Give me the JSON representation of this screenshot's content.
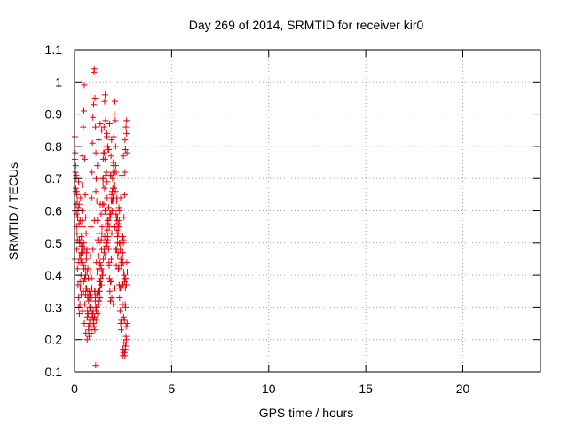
{
  "chart_data": {
    "type": "scatter",
    "title": "Day 269 of 2014, SRMTID for receiver kir0",
    "xlabel": "GPS time / hours",
    "ylabel": "SRMTID / TECUs",
    "xlim": [
      0,
      24
    ],
    "ylim": [
      0.1,
      1.1
    ],
    "xticks": [
      0,
      5,
      10,
      15,
      20
    ],
    "xtick_labels": [
      "0",
      "5",
      "10",
      "15",
      "20"
    ],
    "yticks": [
      0.1,
      0.2,
      0.3,
      0.4,
      0.5,
      0.6,
      0.7,
      0.8,
      0.9,
      1.0,
      1.1
    ],
    "ytick_labels": [
      "0.1",
      "0.2",
      "0.3",
      "0.4",
      "0.5",
      "0.6",
      "0.7",
      "0.8",
      "0.9",
      "1",
      "1.1"
    ],
    "grid": true,
    "marker": "+",
    "color": "#e8000b",
    "series": [
      {
        "name": "kir0",
        "x": [
          0.02,
          0.05,
          0.08,
          0.1,
          0.12,
          0.15,
          0.18,
          0.2,
          0.22,
          0.25,
          0.28,
          0.3,
          0.32,
          0.35,
          0.38,
          0.4,
          0.42,
          0.45,
          0.48,
          0.5,
          0.52,
          0.55,
          0.58,
          0.6,
          0.62,
          0.65,
          0.68,
          0.7,
          0.72,
          0.75,
          0.78,
          0.8,
          0.82,
          0.85,
          0.88,
          0.9,
          0.92,
          0.95,
          0.98,
          1.0,
          1.02,
          1.05,
          1.08,
          1.1,
          1.12,
          1.15,
          1.18,
          1.2,
          1.22,
          1.25,
          1.28,
          1.3,
          1.32,
          1.35,
          1.38,
          1.4,
          1.42,
          1.45,
          1.48,
          1.5,
          1.52,
          1.55,
          1.58,
          1.6,
          1.62,
          1.65,
          1.68,
          1.7,
          1.72,
          1.75,
          1.78,
          1.8,
          1.82,
          1.85,
          1.88,
          1.9,
          1.92,
          1.95,
          1.98,
          2.0,
          2.02,
          2.05,
          2.08,
          2.1,
          2.12,
          2.15,
          2.18,
          2.2,
          2.22,
          2.25,
          2.28,
          2.3,
          2.32,
          2.35,
          2.38,
          2.4,
          2.42,
          2.45,
          2.48,
          2.5,
          2.52,
          2.55,
          2.58,
          2.6,
          2.62,
          2.65,
          2.68,
          2.7,
          0.05,
          0.1,
          0.15,
          0.22,
          0.28,
          0.35,
          0.42,
          0.5,
          0.58,
          0.65,
          0.72,
          0.8,
          0.88,
          0.95,
          1.02,
          1.1,
          1.18,
          1.25,
          1.32,
          1.4,
          1.48,
          1.55,
          1.62,
          1.7,
          1.78,
          1.85,
          1.92,
          2.0,
          2.08,
          2.15,
          2.22,
          2.3,
          2.38,
          2.45,
          2.52,
          2.6,
          2.68,
          0.03,
          0.13,
          0.26,
          0.33,
          0.46,
          0.53,
          0.66,
          0.73,
          0.86,
          0.93,
          1.06,
          1.13,
          1.26,
          1.33,
          1.46,
          1.53,
          1.66,
          1.73,
          1.86,
          1.93,
          2.06,
          2.13,
          2.26,
          2.33,
          2.46,
          2.53,
          2.66,
          0.08,
          0.18,
          0.38,
          0.48,
          0.68,
          0.78,
          0.98,
          1.08,
          1.28,
          1.38,
          1.58,
          1.68,
          1.88,
          1.98,
          2.18,
          2.28,
          2.48,
          2.58,
          0.12,
          0.32,
          0.52,
          0.72,
          0.92,
          1.12,
          1.32,
          1.52,
          1.72,
          1.92,
          2.12,
          2.32,
          2.52,
          2.72,
          0.02,
          0.25,
          0.45,
          0.62,
          0.85,
          1.05,
          1.22,
          1.42,
          1.65,
          1.82,
          2.02,
          2.25,
          2.42,
          2.62,
          0.07,
          0.17,
          0.27,
          0.37,
          0.47,
          0.57,
          0.67,
          0.77,
          0.87,
          0.97,
          1.07,
          1.17,
          1.27,
          1.37,
          1.47,
          1.57,
          1.67,
          1.77,
          1.87,
          1.97,
          2.07,
          2.17,
          2.27,
          2.37,
          2.47,
          2.57,
          2.67,
          0.14,
          0.34,
          0.54,
          0.74,
          0.94,
          1.14,
          1.34,
          1.54,
          1.74,
          1.94,
          2.14,
          2.34,
          2.54,
          0.04,
          0.24,
          0.44,
          0.64,
          0.84,
          1.04,
          1.24,
          1.44,
          1.64,
          1.84,
          2.04,
          2.24,
          2.44,
          2.64,
          0.09,
          0.29,
          0.49,
          0.69,
          0.89,
          1.09,
          1.29,
          1.49,
          1.69,
          1.89,
          2.09,
          2.29,
          2.49,
          2.69,
          0.16,
          0.36,
          0.56,
          0.76,
          0.96,
          1.16,
          1.36,
          1.56,
          1.76,
          1.96,
          2.16,
          2.36,
          2.56,
          0.06,
          0.21,
          0.31,
          0.41,
          0.61,
          0.71,
          0.81,
          0.91,
          1.01,
          1.11,
          1.21,
          1.31,
          1.41,
          1.51,
          1.61,
          1.71,
          1.81,
          1.91,
          2.01,
          2.11,
          2.21,
          2.31,
          2.41,
          2.51,
          2.61,
          2.71,
          0.11,
          0.43,
          0.59,
          0.79,
          0.99,
          1.19,
          1.39,
          1.59,
          1.79,
          1.99,
          2.19,
          2.39,
          2.59,
          0.19,
          0.39,
          0.57,
          0.87,
          1.03,
          1.23,
          1.43,
          1.63,
          1.83,
          2.03,
          2.23,
          2.43,
          2.63,
          0.01,
          0.23,
          0.51,
          0.83,
          1.09,
          1.27,
          1.47,
          1.67,
          1.87,
          2.07,
          2.27,
          2.47,
          2.67,
          2.55,
          2.58,
          2.6,
          2.62,
          2.63,
          2.65,
          2.66,
          2.48,
          2.5,
          2.52
        ],
        "y": [
          0.83,
          0.72,
          0.62,
          0.55,
          0.48,
          0.42,
          0.37,
          0.33,
          0.3,
          0.28,
          0.31,
          0.36,
          0.45,
          0.52,
          0.6,
          0.68,
          0.77,
          0.86,
          0.91,
          0.99,
          0.76,
          0.65,
          0.58,
          0.53,
          0.47,
          0.41,
          0.33,
          0.28,
          0.24,
          0.21,
          0.25,
          0.34,
          0.46,
          0.55,
          0.64,
          0.72,
          0.81,
          0.89,
          0.93,
          1.03,
          1.04,
          0.95,
          0.86,
          0.78,
          0.7,
          0.63,
          0.57,
          0.51,
          0.46,
          0.42,
          0.38,
          0.35,
          0.33,
          0.37,
          0.42,
          0.48,
          0.55,
          0.62,
          0.7,
          0.78,
          0.86,
          0.94,
          0.96,
          0.88,
          0.8,
          0.72,
          0.64,
          0.57,
          0.52,
          0.48,
          0.43,
          0.39,
          0.35,
          0.32,
          0.38,
          0.45,
          0.53,
          0.6,
          0.67,
          0.75,
          0.83,
          0.9,
          0.94,
          0.88,
          0.8,
          0.72,
          0.64,
          0.58,
          0.52,
          0.47,
          0.42,
          0.37,
          0.33,
          0.29,
          0.25,
          0.23,
          0.26,
          0.31,
          0.37,
          0.44,
          0.51,
          0.58,
          0.65,
          0.72,
          0.79,
          0.86,
          0.88,
          0.78,
          0.66,
          0.59,
          0.51,
          0.44,
          0.38,
          0.34,
          0.29,
          0.25,
          0.22,
          0.2,
          0.23,
          0.3,
          0.39,
          0.48,
          0.57,
          0.66,
          0.74,
          0.82,
          0.87,
          0.85,
          0.76,
          0.67,
          0.59,
          0.51,
          0.44,
          0.38,
          0.33,
          0.31,
          0.36,
          0.43,
          0.5,
          0.57,
          0.64,
          0.71,
          0.77,
          0.82,
          0.84,
          0.6,
          0.53,
          0.46,
          0.4,
          0.35,
          0.31,
          0.27,
          0.24,
          0.22,
          0.27,
          0.35,
          0.44,
          0.53,
          0.62,
          0.7,
          0.78,
          0.84,
          0.79,
          0.71,
          0.63,
          0.55,
          0.48,
          0.42,
          0.36,
          0.31,
          0.27,
          0.24,
          0.7,
          0.6,
          0.49,
          0.42,
          0.35,
          0.3,
          0.26,
          0.33,
          0.42,
          0.51,
          0.6,
          0.69,
          0.77,
          0.72,
          0.63,
          0.55,
          0.47,
          0.39,
          0.65,
          0.46,
          0.39,
          0.32,
          0.27,
          0.29,
          0.38,
          0.47,
          0.56,
          0.65,
          0.74,
          0.6,
          0.5,
          0.41,
          0.76,
          0.51,
          0.43,
          0.36,
          0.29,
          0.23,
          0.31,
          0.4,
          0.49,
          0.58,
          0.67,
          0.53,
          0.44,
          0.36,
          0.67,
          0.58,
          0.5,
          0.44,
          0.38,
          0.34,
          0.29,
          0.26,
          0.23,
          0.25,
          0.32,
          0.41,
          0.5,
          0.59,
          0.68,
          0.76,
          0.83,
          0.79,
          0.71,
          0.63,
          0.55,
          0.48,
          0.42,
          0.36,
          0.31,
          0.26,
          0.2,
          0.63,
          0.47,
          0.39,
          0.33,
          0.28,
          0.3,
          0.39,
          0.48,
          0.57,
          0.66,
          0.59,
          0.5,
          0.41,
          0.78,
          0.62,
          0.55,
          0.48,
          0.41,
          0.35,
          0.31,
          0.4,
          0.49,
          0.58,
          0.67,
          0.56,
          0.47,
          0.39,
          0.71,
          0.57,
          0.5,
          0.42,
          0.36,
          0.3,
          0.36,
          0.45,
          0.54,
          0.63,
          0.72,
          0.61,
          0.52,
          0.44,
          0.58,
          0.49,
          0.42,
          0.35,
          0.29,
          0.34,
          0.43,
          0.52,
          0.61,
          0.7,
          0.57,
          0.48,
          0.4,
          0.74,
          0.69,
          0.64,
          0.57,
          0.45,
          0.39,
          0.33,
          0.28,
          0.24,
          0.26,
          0.35,
          0.44,
          0.53,
          0.62,
          0.71,
          0.8,
          0.87,
          0.82,
          0.74,
          0.66,
          0.58,
          0.5,
          0.43,
          0.37,
          0.31,
          0.25,
          0.66,
          0.44,
          0.36,
          0.3,
          0.25,
          0.28,
          0.37,
          0.46,
          0.55,
          0.64,
          0.54,
          0.45,
          0.38,
          0.61,
          0.47,
          0.4,
          0.33,
          0.27,
          0.32,
          0.41,
          0.5,
          0.59,
          0.55,
          0.46,
          0.37,
          0.3,
          0.45,
          0.56,
          0.48,
          0.41,
          0.12,
          0.32,
          0.41,
          0.5,
          0.59,
          0.68,
          0.55,
          0.46,
          0.37,
          0.19,
          0.16,
          0.15,
          0.17,
          0.18,
          0.21,
          0.19,
          0.15,
          0.17,
          0.16
        ]
      }
    ]
  }
}
